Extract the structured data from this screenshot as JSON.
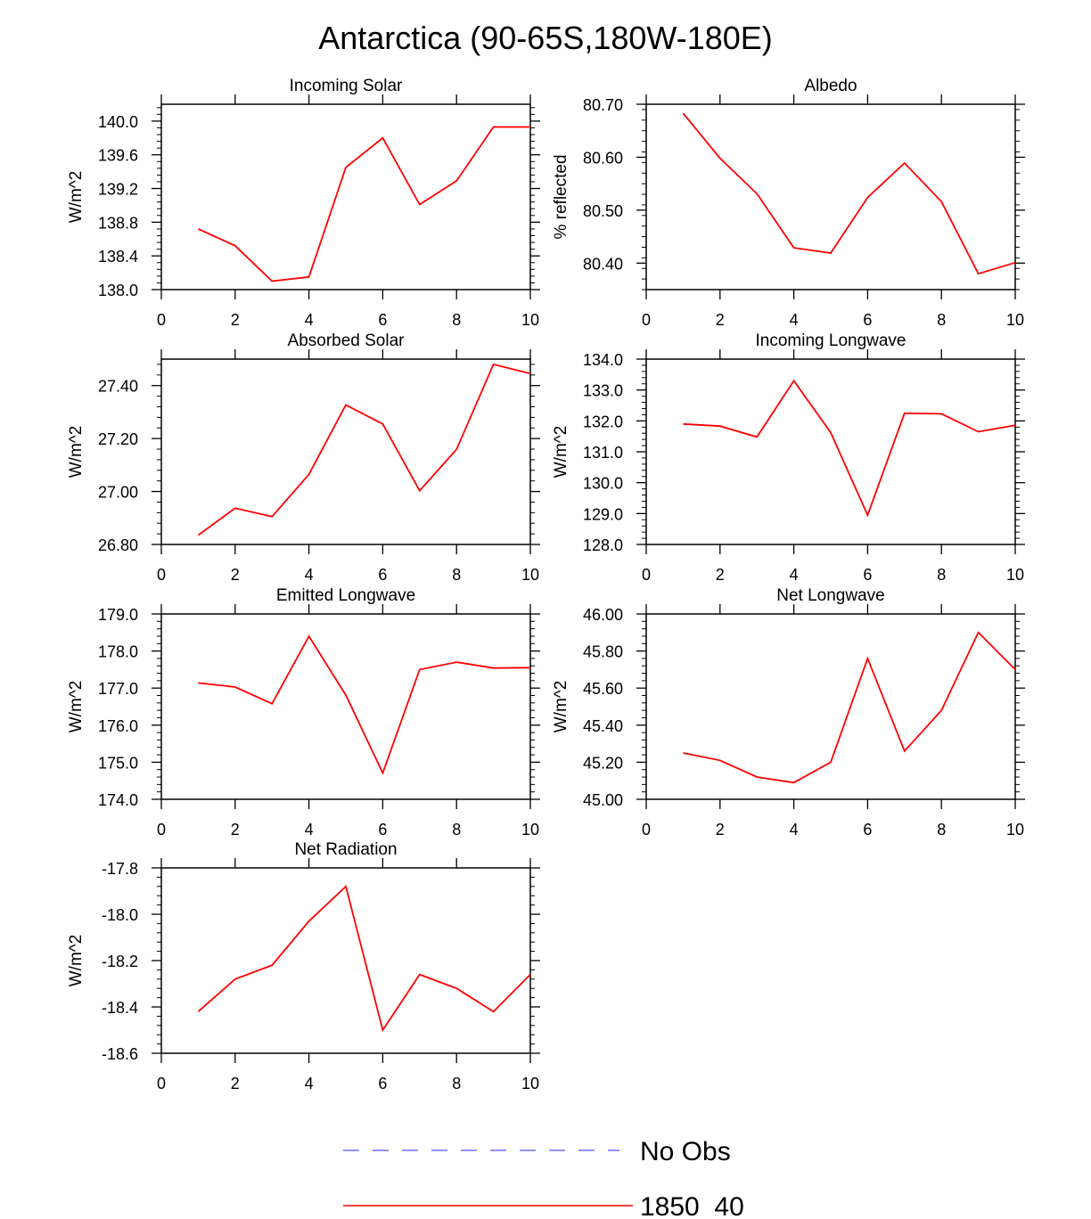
{
  "figure": {
    "title": "Antarctica (90-65S,180W-180E)"
  },
  "legend": {
    "placement": "bottom-center",
    "entries": [
      {
        "label": "No Obs",
        "color": "#6f6fff",
        "style": "dashed"
      },
      {
        "label": "1850_40",
        "color": "#ff0000",
        "style": "solid"
      }
    ]
  },
  "chart_data": [
    {
      "type": "line",
      "title": "Incoming Solar",
      "xlabel": "",
      "ylabel": "W/m^2",
      "xlim": [
        0,
        10
      ],
      "ylim": [
        138.0,
        140.2
      ],
      "xticks": [
        0,
        2,
        4,
        6,
        8,
        10
      ],
      "xtick_labels": [
        "0",
        "2",
        "4",
        "6",
        "8",
        "10"
      ],
      "yticks": [
        138.0,
        138.4,
        138.8,
        139.2,
        139.6,
        140.0
      ],
      "ytick_labels": [
        "138.0",
        "138.4",
        "138.8",
        "139.2",
        "139.6",
        "140.0"
      ],
      "series": [
        {
          "name": "1850_40",
          "color": "#ff0000",
          "x": [
            1,
            2,
            3,
            4,
            5,
            6,
            7,
            8,
            9,
            10
          ],
          "values": [
            138.72,
            138.52,
            138.1,
            138.15,
            139.45,
            139.8,
            139.01,
            139.29,
            139.93,
            139.93
          ]
        }
      ]
    },
    {
      "type": "line",
      "title": "Albedo",
      "xlabel": "",
      "ylabel": "% reflected",
      "xlim": [
        0,
        10
      ],
      "ylim": [
        80.35,
        80.7
      ],
      "xticks": [
        0,
        2,
        4,
        6,
        8,
        10
      ],
      "xtick_labels": [
        "0",
        "2",
        "4",
        "6",
        "8",
        "10"
      ],
      "yticks": [
        80.4,
        80.5,
        80.6,
        80.7
      ],
      "ytick_labels": [
        "80.40",
        "80.50",
        "80.60",
        "80.70"
      ],
      "series": [
        {
          "name": "1850_40",
          "color": "#ff0000",
          "x": [
            1,
            2,
            3,
            4,
            5,
            6,
            7,
            8,
            9,
            10
          ],
          "values": [
            80.683,
            80.598,
            80.531,
            80.429,
            80.419,
            80.524,
            80.589,
            80.516,
            80.38,
            80.401
          ]
        }
      ]
    },
    {
      "type": "line",
      "title": "Absorbed Solar",
      "xlabel": "",
      "ylabel": "W/m^2",
      "xlim": [
        0,
        10
      ],
      "ylim": [
        26.8,
        27.5
      ],
      "xticks": [
        0,
        2,
        4,
        6,
        8,
        10
      ],
      "xtick_labels": [
        "0",
        "2",
        "4",
        "6",
        "8",
        "10"
      ],
      "yticks": [
        26.8,
        27.0,
        27.2,
        27.4
      ],
      "ytick_labels": [
        "26.80",
        "27.00",
        "27.20",
        "27.40"
      ],
      "series": [
        {
          "name": "1850_40",
          "color": "#ff0000",
          "x": [
            1,
            2,
            3,
            4,
            5,
            6,
            7,
            8,
            9,
            10
          ],
          "values": [
            26.835,
            26.937,
            26.905,
            27.065,
            27.327,
            27.255,
            27.003,
            27.159,
            27.48,
            27.445
          ]
        }
      ]
    },
    {
      "type": "line",
      "title": "Incoming Longwave",
      "xlabel": "",
      "ylabel": "W/m^2",
      "xlim": [
        0,
        10
      ],
      "ylim": [
        128.0,
        134.0
      ],
      "xticks": [
        0,
        2,
        4,
        6,
        8,
        10
      ],
      "xtick_labels": [
        "0",
        "2",
        "4",
        "6",
        "8",
        "10"
      ],
      "yticks": [
        128.0,
        129.0,
        130.0,
        131.0,
        132.0,
        133.0,
        134.0
      ],
      "ytick_labels": [
        "128.0",
        "129.0",
        "130.0",
        "131.0",
        "132.0",
        "133.0",
        "134.0"
      ],
      "series": [
        {
          "name": "1850_40",
          "color": "#ff0000",
          "x": [
            1,
            2,
            3,
            4,
            5,
            6,
            7,
            8,
            9,
            10
          ],
          "values": [
            131.9,
            131.83,
            131.48,
            133.3,
            131.62,
            128.95,
            132.25,
            132.23,
            131.65,
            131.86
          ]
        }
      ]
    },
    {
      "type": "line",
      "title": "Emitted Longwave",
      "xlabel": "",
      "ylabel": "W/m^2",
      "xlim": [
        0,
        10
      ],
      "ylim": [
        174.0,
        179.0
      ],
      "xticks": [
        0,
        2,
        4,
        6,
        8,
        10
      ],
      "xtick_labels": [
        "0",
        "2",
        "4",
        "6",
        "8",
        "10"
      ],
      "yticks": [
        174.0,
        175.0,
        176.0,
        177.0,
        178.0,
        179.0
      ],
      "ytick_labels": [
        "174.0",
        "175.0",
        "176.0",
        "177.0",
        "178.0",
        "179.0"
      ],
      "series": [
        {
          "name": "1850_40",
          "color": "#ff0000",
          "x": [
            1,
            2,
            3,
            4,
            5,
            6,
            7,
            8,
            9,
            10
          ],
          "values": [
            177.14,
            177.03,
            176.58,
            178.4,
            176.81,
            174.71,
            177.5,
            177.7,
            177.54,
            177.55
          ]
        }
      ]
    },
    {
      "type": "line",
      "title": "Net Longwave",
      "xlabel": "",
      "ylabel": "W/m^2",
      "xlim": [
        0,
        10
      ],
      "ylim": [
        45.0,
        46.0
      ],
      "xticks": [
        0,
        2,
        4,
        6,
        8,
        10
      ],
      "xtick_labels": [
        "0",
        "2",
        "4",
        "6",
        "8",
        "10"
      ],
      "yticks": [
        45.0,
        45.2,
        45.4,
        45.6,
        45.8,
        46.0
      ],
      "ytick_labels": [
        "45.00",
        "45.20",
        "45.40",
        "45.60",
        "45.80",
        "46.00"
      ],
      "series": [
        {
          "name": "1850_40",
          "color": "#ff0000",
          "x": [
            1,
            2,
            3,
            4,
            5,
            6,
            7,
            8,
            9,
            10
          ],
          "values": [
            45.25,
            45.21,
            45.12,
            45.09,
            45.2,
            45.76,
            45.26,
            45.48,
            45.9,
            45.7
          ]
        }
      ]
    },
    {
      "type": "line",
      "title": "Net Radiation",
      "xlabel": "",
      "ylabel": "W/m^2",
      "xlim": [
        0,
        10
      ],
      "ylim": [
        -18.6,
        -17.8
      ],
      "xticks": [
        0,
        2,
        4,
        6,
        8,
        10
      ],
      "xtick_labels": [
        "0",
        "2",
        "4",
        "6",
        "8",
        "10"
      ],
      "yticks": [
        -18.6,
        -18.4,
        -18.2,
        -18.0,
        -17.8
      ],
      "ytick_labels": [
        "-18.6",
        "-18.4",
        "-18.2",
        "-18.0",
        "-17.8"
      ],
      "series": [
        {
          "name": "1850_40",
          "color": "#ff0000",
          "x": [
            1,
            2,
            3,
            4,
            5,
            6,
            7,
            8,
            9,
            10
          ],
          "values": [
            -18.42,
            -18.28,
            -18.22,
            -18.03,
            -17.88,
            -18.5,
            -18.26,
            -18.32,
            -18.42,
            -18.26
          ]
        }
      ]
    }
  ]
}
